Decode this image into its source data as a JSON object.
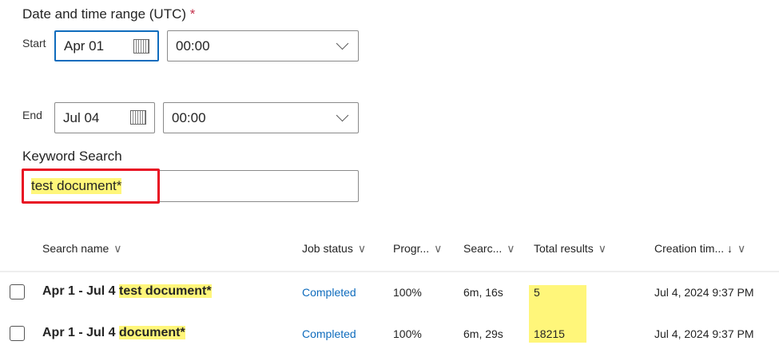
{
  "form": {
    "title": "Date and time range (UTC)",
    "required_mark": "*",
    "start_label": "Start",
    "start_date": "Apr 01",
    "start_time": "00:00",
    "end_label": "End",
    "end_date": "Jul 04",
    "end_time": "00:00",
    "keyword_label": "Keyword Search",
    "keyword_value": "test document*"
  },
  "table": {
    "headers": [
      "Search name",
      "Job status",
      "Progr...",
      "Searc...",
      "Total results",
      "Creation tim..."
    ],
    "sort_indicator": "↓",
    "rows": [
      {
        "name_prefix": "Apr 1 - Jul 4 ",
        "name_keyword": "test document*",
        "status": "Completed",
        "progress": "100%",
        "search_time": "6m, 16s",
        "total": "5",
        "created": "Jul 4, 2024 9:37 PM"
      },
      {
        "name_prefix": "Apr 1 - Jul 4 ",
        "name_keyword": "document*",
        "status": "Completed",
        "progress": "100%",
        "search_time": "6m, 29s",
        "total": "18215",
        "created": "Jul 4, 2024 9:37 PM"
      }
    ]
  },
  "colors": {
    "highlight": "#fff67a",
    "annotation": "#e81123",
    "link": "#0f6cbd"
  }
}
